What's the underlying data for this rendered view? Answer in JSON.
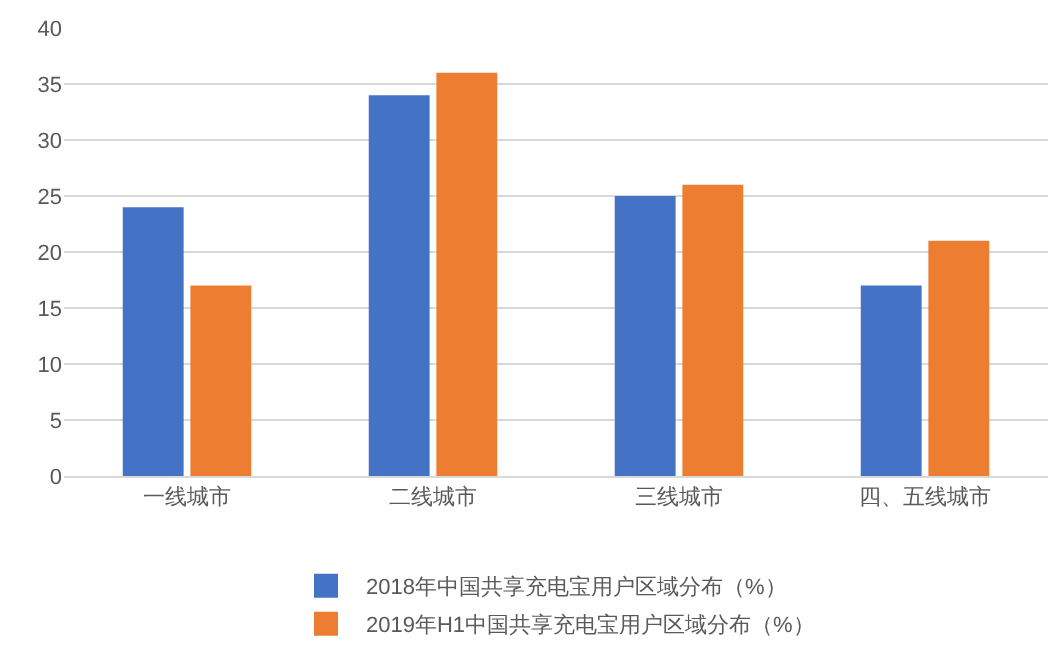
{
  "chart_data": {
    "type": "bar",
    "categories": [
      "一线城市",
      "二线城市",
      "三线城市",
      "四、五线城市"
    ],
    "series": [
      {
        "name": "2018年中国共享充电宝用户区域分布（%）",
        "color": "#4472c4",
        "values": [
          24,
          34,
          25,
          17
        ]
      },
      {
        "name": "2019年H1中国共享充电宝用户区域分布（%）",
        "color": "#ed7d31",
        "values": [
          17,
          36,
          26,
          21
        ]
      }
    ],
    "ylim": [
      0,
      40
    ],
    "yticks": [
      0,
      5,
      10,
      15,
      20,
      25,
      30,
      35,
      40
    ],
    "grid": "y",
    "legend": "bottom"
  }
}
